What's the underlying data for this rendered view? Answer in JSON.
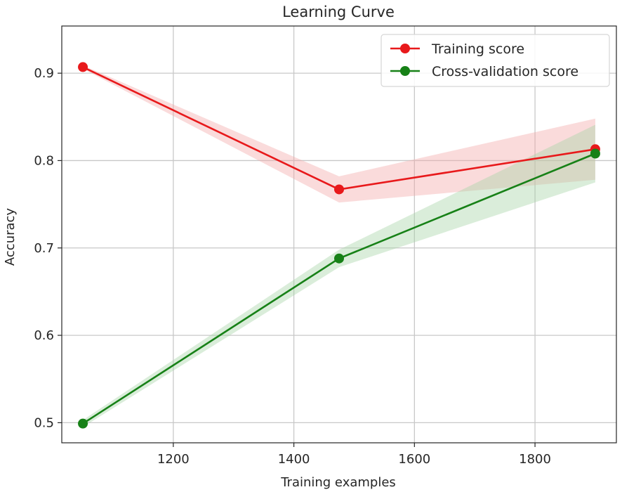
{
  "chart_data": {
    "type": "line",
    "title": "Learning Curve",
    "xlabel": "Training examples",
    "ylabel": "Accuracy",
    "xlim": [
      1015,
      1935
    ],
    "ylim": [
      0.477,
      0.954
    ],
    "grid": true,
    "legend": "top-right",
    "x_ticks": [
      1200,
      1400,
      1600,
      1800
    ],
    "y_ticks": [
      0.5,
      0.6,
      0.7,
      0.8,
      0.9
    ],
    "y_tick_labels": [
      "0.5",
      "0.6",
      "0.7",
      "0.8",
      "0.9"
    ],
    "x": [
      1050,
      1475,
      1900
    ],
    "series": [
      {
        "name": "Training score",
        "color": "#e8191b",
        "band_color": "#f4a9a9",
        "values": [
          0.907,
          0.767,
          0.813
        ],
        "upper": [
          0.909,
          0.782,
          0.848
        ],
        "lower": [
          0.905,
          0.752,
          0.778
        ]
      },
      {
        "name": "Cross-validation score",
        "color": "#178117",
        "band_color": "#a8d5a8",
        "values": [
          0.499,
          0.688,
          0.808
        ],
        "upper": [
          0.503,
          0.698,
          0.841
        ],
        "lower": [
          0.495,
          0.678,
          0.775
        ]
      }
    ]
  }
}
